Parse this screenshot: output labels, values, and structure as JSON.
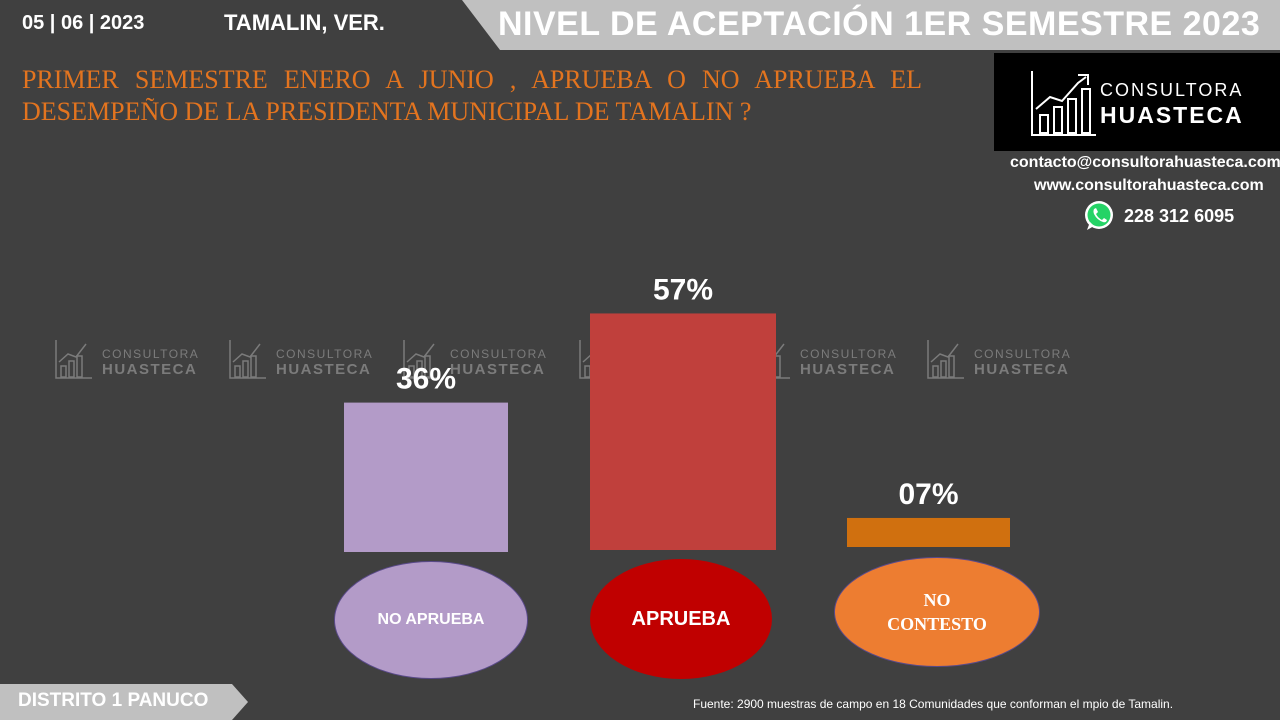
{
  "header": {
    "date": "05 | 06 | 2023",
    "location": "TAMALIN, VER.",
    "banner": "NIVEL DE ACEPTACIÓN  1ER SEMESTRE 2023"
  },
  "question": "PRIMER SEMESTRE ENERO A JUNIO , APRUEBA O NO APRUEBA EL DESEMPEÑO DE LA PRESIDENTA MUNICIPAL DE  TAMALIN ?",
  "logo": {
    "line1": "CONSULTORA",
    "line2": "HUASTECA"
  },
  "contact": {
    "email": "contacto@consultorahuasteca.com",
    "web": "www.consultorahuasteca.com",
    "phone": "228 312 6095",
    "phone_icon": "whatsapp-icon"
  },
  "watermark": {
    "line1": "CONSULTORA",
    "line2": "HUASTECA"
  },
  "chart_data": {
    "type": "bar",
    "categories": [
      "NO APRUEBA",
      "APRUEBA",
      "NO CONTESTO"
    ],
    "values": [
      36,
      57,
      7
    ],
    "value_labels": [
      "36%",
      "57%",
      "07%"
    ],
    "colors": [
      "#b39bc8",
      "#c0403c",
      "#d0700f"
    ],
    "category_colors": [
      "#b39bc8",
      "#c00000",
      "#ed7d31"
    ],
    "ylim": [
      0,
      60
    ],
    "grid": false,
    "legend": "none"
  },
  "footer": {
    "district": "DISTRITO 1 PANUCO",
    "source": "Fuente: 2900  muestras de campo en 18   Comunidades que conforman el mpio de  Tamalin."
  },
  "colors": {
    "background": "#404040",
    "accent": "#e3741f",
    "banner": "#c0c0c0"
  }
}
